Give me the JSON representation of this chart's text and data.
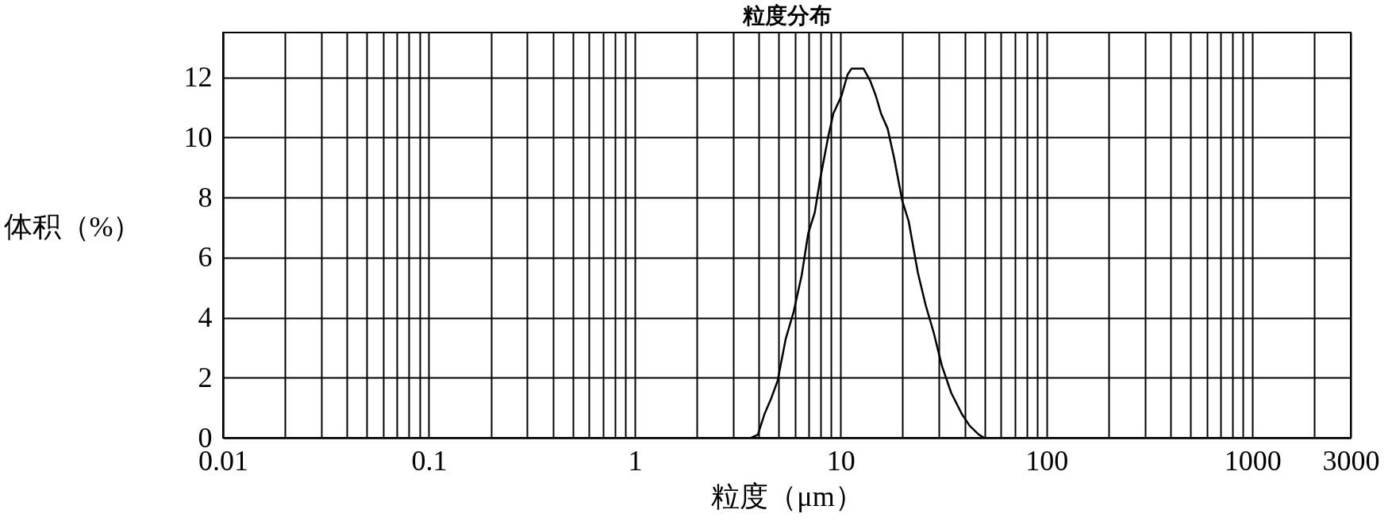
{
  "chart_data": {
    "type": "line",
    "title": "粒度分布",
    "xlabel": "粒度（μm）",
    "ylabel": "体积（%）",
    "log": "x",
    "grid": true,
    "xlim": [
      0.01,
      3000
    ],
    "xticks": [
      0.01,
      {
        "value": 0.02,
        "label": null
      },
      {
        "value": 0.03,
        "label": null
      },
      {
        "value": 0.04,
        "label": null
      },
      {
        "value": 0.05,
        "label": null
      },
      {
        "value": 0.06,
        "label": null
      },
      {
        "value": 0.07,
        "label": null
      },
      {
        "value": 0.08,
        "label": null
      },
      {
        "value": 0.09,
        "label": null
      },
      0.1,
      {
        "value": 0.2,
        "label": null
      },
      {
        "value": 0.3,
        "label": null
      },
      {
        "value": 0.4,
        "label": null
      },
      {
        "value": 0.5,
        "label": null
      },
      {
        "value": 0.6,
        "label": null
      },
      {
        "value": 0.7,
        "label": null
      },
      {
        "value": 0.8,
        "label": null
      },
      {
        "value": 0.9,
        "label": null
      },
      1,
      {
        "value": 2,
        "label": null
      },
      {
        "value": 3,
        "label": null
      },
      {
        "value": 4,
        "label": null
      },
      {
        "value": 5,
        "label": null
      },
      {
        "value": 6,
        "label": null
      },
      {
        "value": 7,
        "label": null
      },
      {
        "value": 8,
        "label": null
      },
      {
        "value": 9,
        "label": null
      },
      10,
      {
        "value": 20,
        "label": null
      },
      {
        "value": 30,
        "label": null
      },
      {
        "value": 40,
        "label": null
      },
      {
        "value": 50,
        "label": null
      },
      {
        "value": 60,
        "label": null
      },
      {
        "value": 70,
        "label": null
      },
      {
        "value": 80,
        "label": null
      },
      {
        "value": 90,
        "label": null
      },
      100,
      {
        "value": 200,
        "label": null
      },
      {
        "value": 300,
        "label": null
      },
      {
        "value": 400,
        "label": null
      },
      {
        "value": 500,
        "label": null
      },
      {
        "value": 600,
        "label": null
      },
      {
        "value": 700,
        "label": null
      },
      {
        "value": 800,
        "label": null
      },
      {
        "value": 900,
        "label": null
      },
      1000,
      {
        "value": 2000,
        "label": null
      },
      3000
    ],
    "ylim": [
      0,
      13.5
    ],
    "yticks": [
      0,
      2,
      4,
      6,
      8,
      10,
      12
    ],
    "x": [
      3.68,
      3.96,
      4.27,
      4.59,
      4.94,
      5.41,
      5.91,
      6.46,
      6.95,
      7.48,
      7.94,
      8.68,
      9.21,
      10.1,
      10.8,
      11.3,
      12.9,
      13.9,
      14.8,
      15.7,
      16.9,
      18.2,
      19.9,
      21.4,
      23.7,
      25.9,
      28.3,
      31.0,
      34.4,
      38.7,
      42.3,
      46.9,
      49.8
    ],
    "series": [
      {
        "color": "#000000",
        "values": [
          0,
          0.1,
          0.8,
          1.3,
          1.9,
          3.3,
          4.2,
          5.4,
          6.8,
          7.5,
          8.6,
          10.0,
          10.8,
          11.4,
          12.1,
          12.3,
          12.3,
          11.9,
          11.4,
          10.8,
          10.3,
          9.3,
          7.9,
          7.2,
          5.5,
          4.4,
          3.5,
          2.4,
          1.5,
          0.8,
          0.4,
          0.1,
          0
        ]
      }
    ]
  }
}
